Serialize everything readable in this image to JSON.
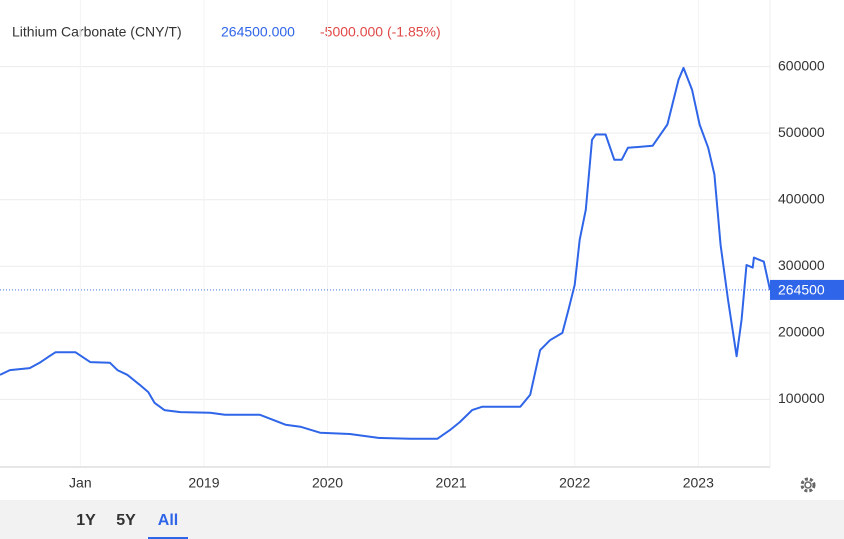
{
  "chart_data": {
    "type": "line",
    "title": "Lithium Carbonate (CNY/T)",
    "price": "264500.000",
    "change": "-5000.000 (-1.85%)",
    "x": [
      2017.35,
      2017.43,
      2017.59,
      2017.67,
      2017.75,
      2017.8,
      2017.96,
      2018.08,
      2018.24,
      2018.3,
      2018.38,
      2018.48,
      2018.55,
      2018.6,
      2018.68,
      2018.81,
      2019.05,
      2019.17,
      2019.45,
      2019.66,
      2019.78,
      2019.94,
      2020.18,
      2020.42,
      2020.67,
      2020.89,
      2020.99,
      2021.07,
      2021.17,
      2021.25,
      2021.56,
      2021.64,
      2021.72,
      2021.8,
      2021.9,
      2021.95,
      2022.0,
      2022.04,
      2022.09,
      2022.14,
      2022.17,
      2022.25,
      2022.32,
      2022.38,
      2022.43,
      2022.63,
      2022.75,
      2022.84,
      2022.88,
      2022.95,
      2023.01,
      2023.08,
      2023.13,
      2023.18,
      2023.24,
      2023.31,
      2023.35,
      2023.39,
      2023.44,
      2023.45,
      2023.53,
      2023.58
    ],
    "series": [
      {
        "name": "Lithium Carbonate",
        "color": "#2f65e8",
        "values": [
          137000,
          144000,
          147000,
          155000,
          165000,
          171000,
          171000,
          156000,
          155000,
          144000,
          137000,
          122000,
          111000,
          95000,
          84000,
          81000,
          80000,
          77000,
          77000,
          62000,
          59000,
          50000,
          48000,
          42000,
          41000,
          41000,
          54000,
          66000,
          84000,
          89000,
          89000,
          107000,
          174000,
          189000,
          200000,
          235000,
          272000,
          340000,
          385000,
          490000,
          498000,
          498000,
          460000,
          460000,
          478000,
          481000,
          513000,
          580000,
          598000,
          565000,
          513000,
          478000,
          438000,
          332000,
          250000,
          165000,
          220000,
          302000,
          298000,
          313000,
          307000,
          264500
        ]
      }
    ],
    "last_value": 264500,
    "xlim": [
      2017.35,
      2023.58
    ],
    "xticks": [
      {
        "value": 2018,
        "label": "Jan"
      },
      2019,
      2020,
      2021,
      2022,
      2023
    ],
    "ylim": [
      0,
      700000
    ],
    "yticks": [
      100000,
      200000,
      300000,
      400000,
      500000,
      600000
    ],
    "grid": true,
    "range_buttons": [
      "1Y",
      "5Y",
      "All"
    ],
    "active_button": 2
  }
}
